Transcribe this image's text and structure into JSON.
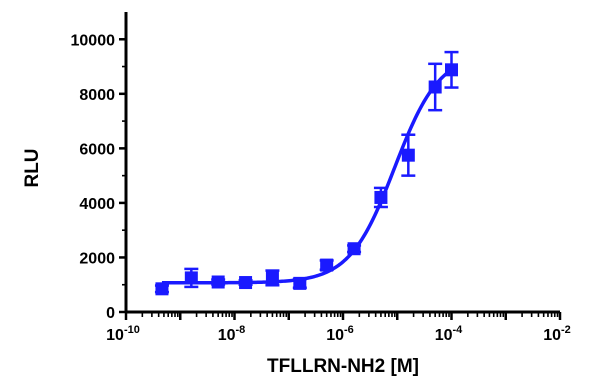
{
  "chart_data": {
    "type": "scatter",
    "title": "",
    "xlabel": "TFLLRN-NH2 [M]",
    "ylabel": "RLU",
    "xscale": "log",
    "xlim": [
      1e-10,
      0.01
    ],
    "ylim": [
      0,
      11000
    ],
    "xticks": [
      {
        "base": "10",
        "exp": "-10"
      },
      {
        "base": "10",
        "exp": "-8"
      },
      {
        "base": "10",
        "exp": "-6"
      },
      {
        "base": "10",
        "exp": "-4"
      },
      {
        "base": "10",
        "exp": "-2"
      }
    ],
    "yticks": [
      "0",
      "2000",
      "4000",
      "6000",
      "8000",
      "10000"
    ],
    "color": "#1a1aff",
    "grid": false,
    "legend": "none",
    "series": [
      {
        "points": [
          {
            "x": 4.6e-10,
            "y": 850,
            "err": 120
          },
          {
            "x": 1.6e-09,
            "y": 1250,
            "err": 330
          },
          {
            "x": 5e-09,
            "y": 1100,
            "err": 90
          },
          {
            "x": 1.6e-08,
            "y": 1080,
            "err": 80
          },
          {
            "x": 5e-08,
            "y": 1250,
            "err": 270
          },
          {
            "x": 1.6e-07,
            "y": 1050,
            "err": 160
          },
          {
            "x": 5e-07,
            "y": 1720,
            "err": 170
          },
          {
            "x": 1.6e-06,
            "y": 2320,
            "err": 120
          },
          {
            "x": 5e-06,
            "y": 4200,
            "err": 350
          },
          {
            "x": 1.6e-05,
            "y": 5750,
            "err": 750
          },
          {
            "x": 5e-05,
            "y": 8250,
            "err": 850
          },
          {
            "x": 0.0001,
            "y": 8880,
            "err": 650
          }
        ],
        "fit": {
          "bottom": 1070,
          "top": 9500,
          "logEC50": -5.05,
          "hill": 1.05
        }
      }
    ]
  }
}
